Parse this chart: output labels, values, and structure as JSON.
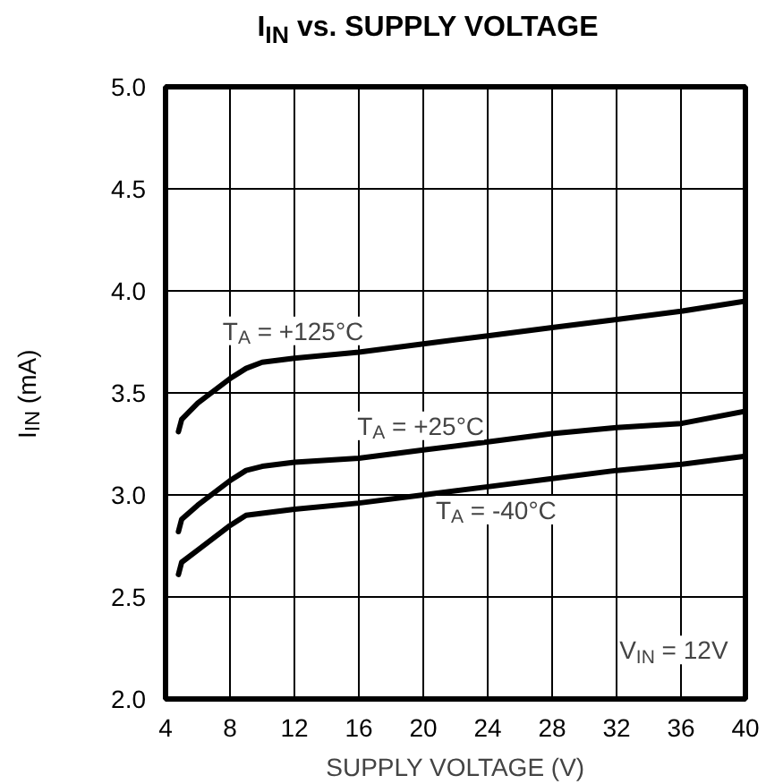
{
  "chart_data": {
    "type": "line",
    "title": "I$_{IN}$ vs. SUPPLY VOLTAGE",
    "xlabel": "SUPPLY VOLTAGE (V)",
    "ylabel": "I$_{IN}$ (mA)",
    "x": [
      4.8,
      5,
      6,
      8,
      9,
      10,
      12,
      16,
      20,
      24,
      28,
      32,
      36,
      40
    ],
    "series": [
      {
        "name": "T$_{A}$ = +125°C",
        "color": "#000000",
        "values": [
          3.31,
          3.37,
          3.45,
          3.57,
          3.62,
          3.65,
          3.67,
          3.7,
          3.74,
          3.78,
          3.82,
          3.86,
          3.9,
          3.95
        ]
      },
      {
        "name": "T$_{A}$ = +25°C",
        "color": "#000000",
        "values": [
          2.82,
          2.88,
          2.95,
          3.07,
          3.12,
          3.14,
          3.16,
          3.18,
          3.22,
          3.26,
          3.3,
          3.33,
          3.35,
          3.41
        ]
      },
      {
        "name": "T$_{A}$ = -40°C",
        "color": "#000000",
        "values": [
          2.61,
          2.67,
          2.73,
          2.85,
          2.9,
          2.91,
          2.93,
          2.96,
          3.0,
          3.04,
          3.08,
          3.12,
          3.15,
          3.19
        ]
      }
    ],
    "annotations": [
      "V$_{IN}$ = 12V"
    ],
    "xlim": [
      4,
      40
    ],
    "xticks": [
      4,
      8,
      12,
      16,
      20,
      24,
      28,
      32,
      36,
      40
    ],
    "ylim": [
      2.0,
      5.0
    ],
    "yticks": [
      {
        "value": 2.0,
        "label": "2.0"
      },
      {
        "value": 2.5,
        "label": "2.5"
      },
      {
        "value": 3.0,
        "label": "3.0"
      },
      {
        "value": 3.5,
        "label": "3.5"
      },
      {
        "value": 4.0,
        "label": "4.0"
      },
      {
        "value": 4.5,
        "label": "4.5"
      },
      {
        "value": 5.0,
        "label": "5.0"
      }
    ],
    "grid": true,
    "marker": "none",
    "line_style": "solid"
  }
}
